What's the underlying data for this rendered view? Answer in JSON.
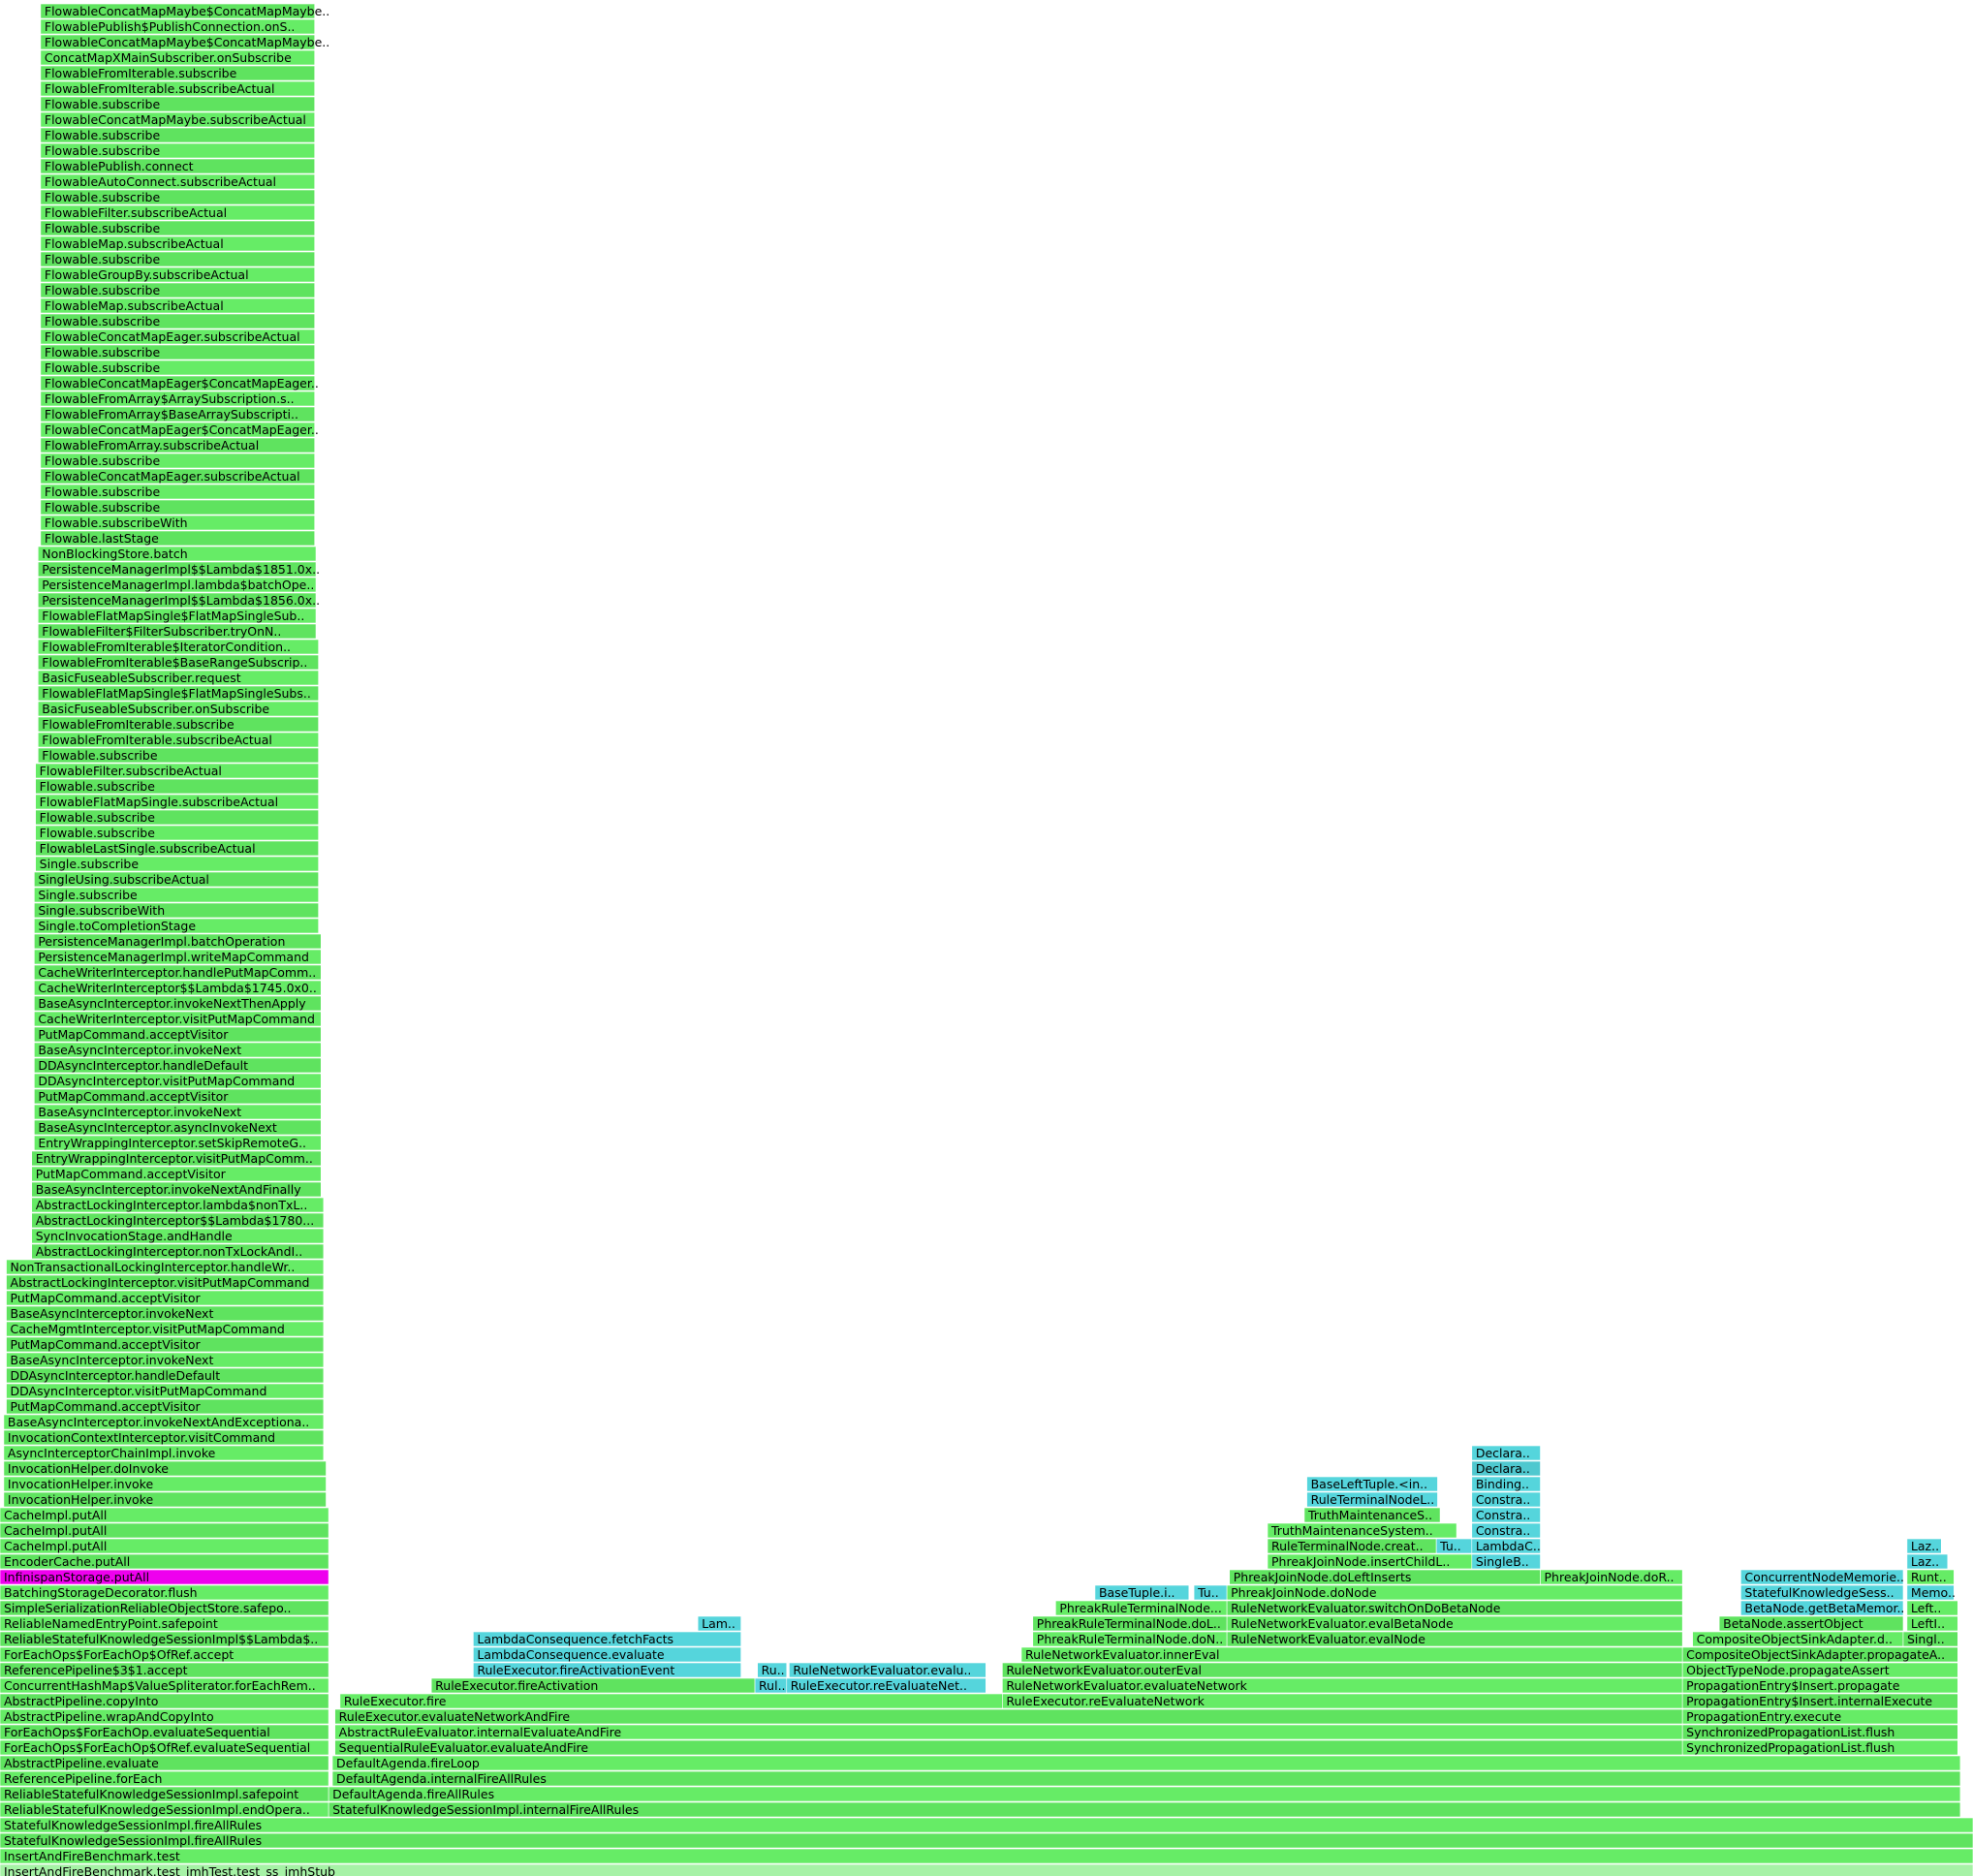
{
  "frames": [
    {
      "label": "InsertAndFireBenchmark.test_jmhTest.test_ss_jmhStub",
      "color": "#a6f2a6"
    },
    {
      "label": "InsertAndFireBenchmark.test",
      "color": "#66ec66"
    },
    {
      "label": "StatefulKnowledgeSessionImpl.fireAllRules",
      "color": "#5fe35f"
    },
    {
      "label": "StatefulKnowledgeSessionImpl.fireAllRules",
      "color": "#66ec66"
    },
    {
      "label": "ReliableStatefulKnowledgeSessionImpl.endOpera..",
      "color": "#66ec66"
    },
    {
      "label": "StatefulKnowledgeSessionImpl.internalFireAllRules",
      "color": "#5fe35f"
    },
    {
      "label": "ReliableStatefulKnowledgeSessionImpl.safepoint",
      "color": "#5fe35f"
    },
    {
      "label": "DefaultAgenda.fireAllRules",
      "color": "#66ec66"
    },
    {
      "label": "ReferencePipeline.forEach",
      "color": "#66ec66"
    },
    {
      "label": "DefaultAgenda.internalFireAllRules",
      "color": "#5fe35f"
    },
    {
      "label": "AbstractPipeline.evaluate",
      "color": "#5fe35f"
    },
    {
      "label": "DefaultAgenda.fireLoop",
      "color": "#66ec66"
    },
    {
      "label": "ForEachOps$ForEachOp$OfRef.evaluateSequential",
      "color": "#66ec66"
    },
    {
      "label": "SequentialRuleEvaluator.evaluateAndFire",
      "color": "#5fe35f"
    },
    {
      "label": "SynchronizedPropagationList.flush",
      "color": "#66ec66"
    },
    {
      "label": "ForEachOps$ForEachOp.evaluateSequential",
      "color": "#5fe35f"
    },
    {
      "label": "AbstractRuleEvaluator.internalEvaluateAndFire",
      "color": "#66ec66"
    },
    {
      "label": "SynchronizedPropagationList.flush",
      "color": "#5fe35f"
    },
    {
      "label": "AbstractPipeline.wrapAndCopyInto",
      "color": "#66ec66"
    },
    {
      "label": "RuleExecutor.evaluateNetworkAndFire",
      "color": "#5fe35f"
    },
    {
      "label": "PropagationEntry.execute",
      "color": "#66ec66"
    },
    {
      "label": "AbstractPipeline.copyInto",
      "color": "#5fe35f"
    },
    {
      "label": "RuleExecutor.fire",
      "color": "#66ec66"
    },
    {
      "label": "RuleExecutor.reEvaluateNetwork",
      "color": "#66ec66"
    },
    {
      "label": "PropagationEntry$Insert.internalExecute",
      "color": "#5fe35f"
    },
    {
      "label": "ConcurrentHashMap$ValueSpliterator.forEachRem..",
      "color": "#66ec66"
    },
    {
      "label": "RuleExecutor.fireActivation",
      "color": "#5fe35f"
    },
    {
      "label": "Rul..",
      "color": "#55d5dc"
    },
    {
      "label": "RuleExecutor.reEvaluateNet..",
      "color": "#55d5dc"
    },
    {
      "label": "RuleNetworkEvaluator.evaluateNetwork",
      "color": "#66ec66"
    },
    {
      "label": "PropagationEntry$Insert.propagate",
      "color": "#66ec66"
    },
    {
      "label": "ReferencePipeline$3$1.accept",
      "color": "#5fe35f"
    },
    {
      "label": "RuleExecutor.fireActivationEvent",
      "color": "#55d5dc"
    },
    {
      "label": "Ru..",
      "color": "#55d5dc"
    },
    {
      "label": "RuleNetworkEvaluator.evalu..",
      "color": "#55d5dc"
    },
    {
      "label": "RuleNetworkEvaluator.outerEval",
      "color": "#5fe35f"
    },
    {
      "label": "ObjectTypeNode.propagateAssert",
      "color": "#66ec66"
    },
    {
      "label": "ForEachOps$ForEachOp$OfRef.accept",
      "color": "#66ec66"
    },
    {
      "label": "LambdaConsequence.evaluate",
      "color": "#55d5dc"
    },
    {
      "label": "RuleNetworkEvaluator.innerEval",
      "color": "#66ec66"
    },
    {
      "label": "CompositeObjectSinkAdapter.propagateA..",
      "color": "#5fe35f"
    },
    {
      "label": "ReliableStatefulKnowledgeSessionImpl$$Lambda$..",
      "color": "#5fe35f"
    },
    {
      "label": "LambdaConsequence.fetchFacts",
      "color": "#55d5dc"
    },
    {
      "label": "PhreakRuleTerminalNode.doN..",
      "color": "#66ec66"
    },
    {
      "label": "RuleNetworkEvaluator.evalNode",
      "color": "#5fe35f"
    },
    {
      "label": "CompositeObjectSinkAdapter.d..",
      "color": "#66ec66"
    },
    {
      "label": "Singl..",
      "color": "#5fe35f"
    },
    {
      "label": "ReliableNamedEntryPoint.safepoint",
      "color": "#66ec66"
    },
    {
      "label": "Lam..",
      "color": "#55d5dc"
    },
    {
      "label": "PhreakRuleTerminalNode.doL..",
      "color": "#5fe35f"
    },
    {
      "label": "RuleNetworkEvaluator.evalBetaNode",
      "color": "#66ec66"
    },
    {
      "label": "BetaNode.assertObject",
      "color": "#5fe35f"
    },
    {
      "label": "LeftI..",
      "color": "#66ec66"
    },
    {
      "label": "SimpleSerializationReliableObjectStore.safepo..",
      "color": "#5fe35f"
    },
    {
      "label": "PhreakRuleTerminalNode...",
      "color": "#66ec66"
    },
    {
      "label": "RuleNetworkEvaluator.switchOnDoBetaNode",
      "color": "#5fe35f"
    },
    {
      "label": "BetaNode.getBetaMemor..",
      "color": "#55d5dc"
    },
    {
      "label": "Left..",
      "color": "#66ec66"
    },
    {
      "label": "BatchingStorageDecorator.flush",
      "color": "#66ec66"
    },
    {
      "label": "BaseTuple.i..",
      "color": "#55d5dc"
    },
    {
      "label": "Tu..",
      "color": "#55d5dc"
    },
    {
      "label": "PhreakJoinNode.doNode",
      "color": "#66ec66"
    },
    {
      "label": "StatefulKnowledgeSess..",
      "color": "#55d5dc"
    },
    {
      "label": "Memo..",
      "color": "#55d5dc"
    },
    {
      "label": "InfinispanStorage.putAll",
      "color": "#ee00ee"
    },
    {
      "label": "PhreakJoinNode.doLeftInserts",
      "color": "#5fe35f"
    },
    {
      "label": "PhreakJoinNode.doR..",
      "color": "#66ec66"
    },
    {
      "label": "ConcurrentNodeMemorie..",
      "color": "#55d5dc"
    },
    {
      "label": "Runt..",
      "color": "#66ec66"
    },
    {
      "label": "EncoderCache.putAll",
      "color": "#5fe35f"
    },
    {
      "label": "PhreakJoinNode.insertChildL..",
      "color": "#66ec66"
    },
    {
      "label": "SingleB..",
      "color": "#55d5dc"
    },
    {
      "label": "Laz..",
      "color": "#55d5dc"
    },
    {
      "label": "CacheImpl.putAll",
      "color": "#66ec66"
    },
    {
      "label": "RuleTerminalNode.creat..",
      "color": "#5fe35f"
    },
    {
      "label": "Tu..",
      "color": "#55d5dc"
    },
    {
      "label": "LambdaC..",
      "color": "#55d5dc"
    },
    {
      "label": "Laz..",
      "color": "#55d5dc"
    },
    {
      "label": "CacheImpl.putAll",
      "color": "#5fe35f"
    },
    {
      "label": "TruthMaintenanceSystem..",
      "color": "#66ec66"
    },
    {
      "label": "Constra..",
      "color": "#55d5dc"
    },
    {
      "label": "CacheImpl.putAll",
      "color": "#66ec66"
    },
    {
      "label": "TruthMaintenanceS..",
      "color": "#5fe35f"
    },
    {
      "label": "Constra..",
      "color": "#55d5dc"
    },
    {
      "label": "InvocationHelper.invoke",
      "color": "#5fe35f"
    },
    {
      "label": "RuleTerminalNodeL..",
      "color": "#55d5dc"
    },
    {
      "label": "Constra..",
      "color": "#55d5dc"
    },
    {
      "label": "InvocationHelper.invoke",
      "color": "#66ec66"
    },
    {
      "label": "BaseLeftTuple.<in..",
      "color": "#55d5dc"
    },
    {
      "label": "Binding..",
      "color": "#55d5dc"
    },
    {
      "label": "InvocationHelper.doInvoke",
      "color": "#5fe35f"
    },
    {
      "label": "Declara..",
      "color": "#4fc8cf"
    },
    {
      "label": "AsyncInterceptorChainImpl.invoke",
      "color": "#66ec66"
    },
    {
      "label": "Declara..",
      "color": "#55d5dc"
    },
    {
      "label": "InvocationContextInterceptor.visitCommand",
      "color": "#5fe35f"
    },
    {
      "label": "BaseAsyncInterceptor.invokeNextAndExceptiona..",
      "color": "#66ec66"
    },
    {
      "label": "PutMapCommand.acceptVisitor",
      "color": "#5fe35f"
    },
    {
      "label": "DDAsyncInterceptor.visitPutMapCommand",
      "color": "#66ec66"
    },
    {
      "label": "DDAsyncInterceptor.handleDefault",
      "color": "#5fe35f"
    },
    {
      "label": "BaseAsyncInterceptor.invokeNext",
      "color": "#66ec66"
    },
    {
      "label": "PutMapCommand.acceptVisitor",
      "color": "#5fe35f"
    },
    {
      "label": "CacheMgmtInterceptor.visitPutMapCommand",
      "color": "#66ec66"
    },
    {
      "label": "BaseAsyncInterceptor.invokeNext",
      "color": "#5fe35f"
    },
    {
      "label": "PutMapCommand.acceptVisitor",
      "color": "#66ec66"
    },
    {
      "label": "AbstractLockingInterceptor.visitPutMapCommand",
      "color": "#5fe35f"
    },
    {
      "label": "NonTransactionalLockingInterceptor.handleWr..",
      "color": "#66ec66"
    },
    {
      "label": "AbstractLockingInterceptor.nonTxLockAndI..",
      "color": "#5fe35f"
    },
    {
      "label": "SyncInvocationStage.andHandle",
      "color": "#66ec66"
    },
    {
      "label": "AbstractLockingInterceptor$$Lambda$1780...",
      "color": "#5fe35f"
    },
    {
      "label": "AbstractLockingInterceptor.lambda$nonTxL..",
      "color": "#66ec66"
    },
    {
      "label": "BaseAsyncInterceptor.invokeNextAndFinally",
      "color": "#5fe35f"
    },
    {
      "label": "PutMapCommand.acceptVisitor",
      "color": "#66ec66"
    },
    {
      "label": "EntryWrappingInterceptor.visitPutMapComm..",
      "color": "#5fe35f"
    },
    {
      "label": "EntryWrappingInterceptor.setSkipRemoteG..",
      "color": "#66ec66"
    },
    {
      "label": "BaseAsyncInterceptor.asyncInvokeNext",
      "color": "#5fe35f"
    },
    {
      "label": "BaseAsyncInterceptor.invokeNext",
      "color": "#66ec66"
    },
    {
      "label": "PutMapCommand.acceptVisitor",
      "color": "#5fe35f"
    },
    {
      "label": "DDAsyncInterceptor.visitPutMapCommand",
      "color": "#66ec66"
    },
    {
      "label": "DDAsyncInterceptor.handleDefault",
      "color": "#5fe35f"
    },
    {
      "label": "BaseAsyncInterceptor.invokeNext",
      "color": "#66ec66"
    },
    {
      "label": "PutMapCommand.acceptVisitor",
      "color": "#5fe35f"
    },
    {
      "label": "CacheWriterInterceptor.visitPutMapCommand",
      "color": "#66ec66"
    },
    {
      "label": "BaseAsyncInterceptor.invokeNextThenApply",
      "color": "#5fe35f"
    },
    {
      "label": "CacheWriterInterceptor$$Lambda$1745.0x0..",
      "color": "#66ec66"
    },
    {
      "label": "CacheWriterInterceptor.handlePutMapComm..",
      "color": "#5fe35f"
    },
    {
      "label": "PersistenceManagerImpl.writeMapCommand",
      "color": "#66ec66"
    },
    {
      "label": "PersistenceManagerImpl.batchOperation",
      "color": "#5fe35f"
    },
    {
      "label": "Single.toCompletionStage",
      "color": "#66ec66"
    },
    {
      "label": "Single.subscribeWith",
      "color": "#5fe35f"
    },
    {
      "label": "Single.subscribe",
      "color": "#66ec66"
    },
    {
      "label": "SingleUsing.subscribeActual",
      "color": "#5fe35f"
    },
    {
      "label": "Single.subscribe",
      "color": "#66ec66"
    },
    {
      "label": "FlowableLastSingle.subscribeActual",
      "color": "#5fe35f"
    },
    {
      "label": "Flowable.subscribe",
      "color": "#66ec66"
    },
    {
      "label": "Flowable.subscribe",
      "color": "#5fe35f"
    },
    {
      "label": "FlowableFlatMapSingle.subscribeActual",
      "color": "#66ec66"
    },
    {
      "label": "Flowable.subscribe",
      "color": "#5fe35f"
    },
    {
      "label": "FlowableFilter.subscribeActual",
      "color": "#66ec66"
    },
    {
      "label": "Flowable.subscribe",
      "color": "#5fe35f"
    },
    {
      "label": "FlowableFromIterable.subscribeActual",
      "color": "#66ec66"
    },
    {
      "label": "FlowableFromIterable.subscribe",
      "color": "#5fe35f"
    },
    {
      "label": "BasicFuseableSubscriber.onSubscribe",
      "color": "#66ec66"
    },
    {
      "label": "FlowableFlatMapSingle$FlatMapSingleSubs..",
      "color": "#5fe35f"
    },
    {
      "label": "BasicFuseableSubscriber.request",
      "color": "#66ec66"
    },
    {
      "label": "FlowableFromIterable$BaseRangeSubscrip..",
      "color": "#5fe35f"
    },
    {
      "label": "FlowableFromIterable$IteratorCondition..",
      "color": "#66ec66"
    },
    {
      "label": "FlowableFilter$FilterSubscriber.tryOnN..",
      "color": "#5fe35f"
    },
    {
      "label": "FlowableFlatMapSingle$FlatMapSingleSub..",
      "color": "#66ec66"
    },
    {
      "label": "PersistenceManagerImpl$$Lambda$1856.0x..",
      "color": "#5fe35f"
    },
    {
      "label": "PersistenceManagerImpl.lambda$batchOpe..",
      "color": "#66ec66"
    },
    {
      "label": "PersistenceManagerImpl$$Lambda$1851.0x..",
      "color": "#5fe35f"
    },
    {
      "label": "NonBlockingStore.batch",
      "color": "#66ec66"
    },
    {
      "label": "Flowable.lastStage",
      "color": "#5fe35f"
    },
    {
      "label": "Flowable.subscribeWith",
      "color": "#66ec66"
    },
    {
      "label": "Flowable.subscribe",
      "color": "#5fe35f"
    },
    {
      "label": "Flowable.subscribe",
      "color": "#66ec66"
    },
    {
      "label": "FlowableConcatMapEager.subscribeActual",
      "color": "#5fe35f"
    },
    {
      "label": "Flowable.subscribe",
      "color": "#66ec66"
    },
    {
      "label": "FlowableFromArray.subscribeActual",
      "color": "#5fe35f"
    },
    {
      "label": "FlowableConcatMapEager$ConcatMapEager..",
      "color": "#66ec66"
    },
    {
      "label": "FlowableFromArray$BaseArraySubscripti..",
      "color": "#5fe35f"
    },
    {
      "label": "FlowableFromArray$ArraySubscription.s..",
      "color": "#66ec66"
    },
    {
      "label": "FlowableConcatMapEager$ConcatMapEager..",
      "color": "#5fe35f"
    },
    {
      "label": "Flowable.subscribe",
      "color": "#66ec66"
    },
    {
      "label": "Flowable.subscribe",
      "color": "#5fe35f"
    },
    {
      "label": "FlowableConcatMapEager.subscribeActual",
      "color": "#66ec66"
    },
    {
      "label": "Flowable.subscribe",
      "color": "#5fe35f"
    },
    {
      "label": "FlowableMap.subscribeActual",
      "color": "#66ec66"
    },
    {
      "label": "Flowable.subscribe",
      "color": "#5fe35f"
    },
    {
      "label": "FlowableGroupBy.subscribeActual",
      "color": "#66ec66"
    },
    {
      "label": "Flowable.subscribe",
      "color": "#5fe35f"
    },
    {
      "label": "FlowableMap.subscribeActual",
      "color": "#66ec66"
    },
    {
      "label": "Flowable.subscribe",
      "color": "#5fe35f"
    },
    {
      "label": "FlowableFilter.subscribeActual",
      "color": "#66ec66"
    },
    {
      "label": "Flowable.subscribe",
      "color": "#5fe35f"
    },
    {
      "label": "FlowableAutoConnect.subscribeActual",
      "color": "#66ec66"
    },
    {
      "label": "FlowablePublish.connect",
      "color": "#5fe35f"
    },
    {
      "label": "Flowable.subscribe",
      "color": "#66ec66"
    },
    {
      "label": "Flowable.subscribe",
      "color": "#5fe35f"
    },
    {
      "label": "FlowableConcatMapMaybe.subscribeActual",
      "color": "#66ec66"
    },
    {
      "label": "Flowable.subscribe",
      "color": "#5fe35f"
    },
    {
      "label": "FlowableFromIterable.subscribeActual",
      "color": "#66ec66"
    },
    {
      "label": "FlowableFromIterable.subscribe",
      "color": "#5fe35f"
    },
    {
      "label": "ConcatMapXMainSubscriber.onSubscribe",
      "color": "#66ec66"
    },
    {
      "label": "FlowableConcatMapMaybe$ConcatMapMaybe..",
      "color": "#5fe35f"
    },
    {
      "label": "FlowablePublish$PublishConnection.onS..",
      "color": "#66ec66"
    },
    {
      "label": "FlowableConcatMapMaybe$ConcatMapMaybe..",
      "color": "#5fe35f"
    }
  ]
}
